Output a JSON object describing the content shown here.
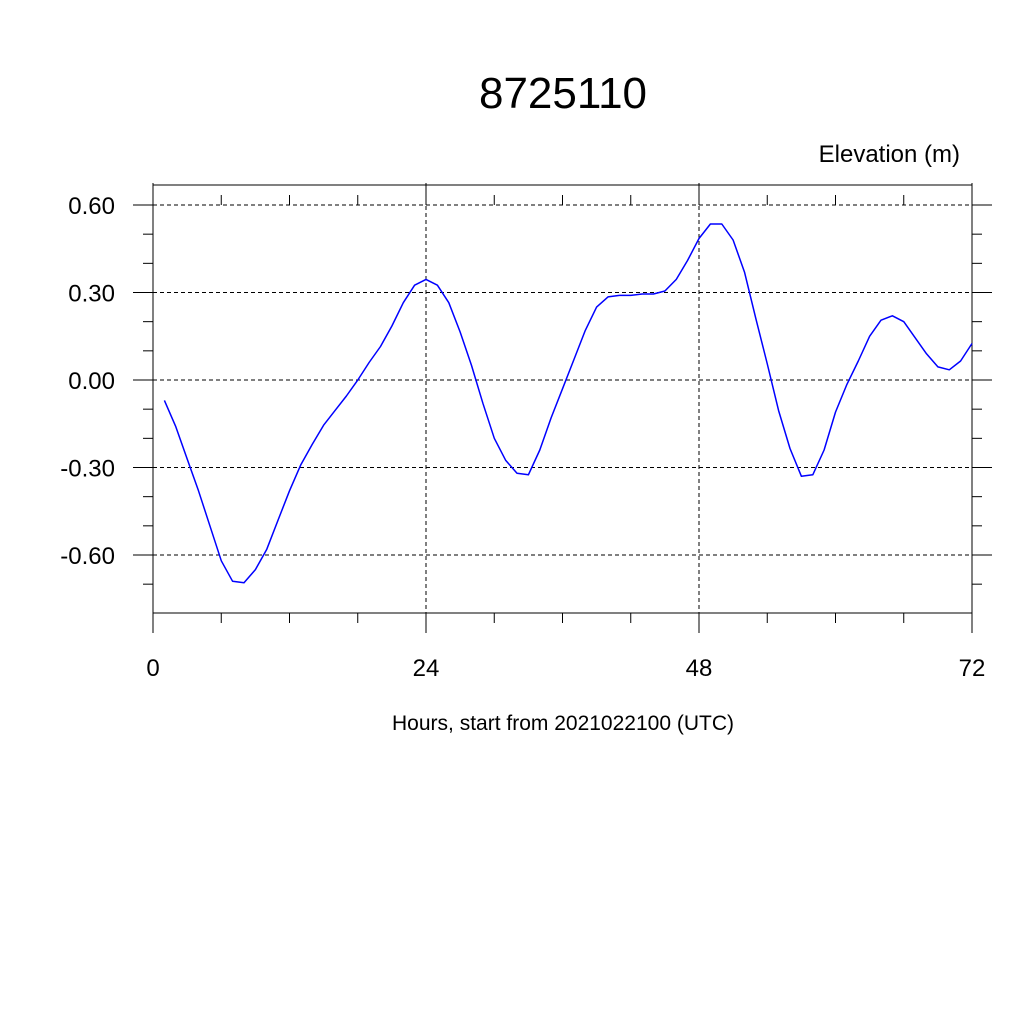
{
  "chart_data": {
    "type": "line",
    "title": "8725110",
    "units_label": "Elevation (m)",
    "xlabel": "Hours, start from 2021022100 (UTC)",
    "ylabel": "",
    "xlim": [
      0,
      72
    ],
    "ylim": [
      -0.8,
      0.67
    ],
    "x_ticks": [
      0,
      24,
      48,
      72
    ],
    "x_tick_labels": [
      "0",
      "24",
      "48",
      "72"
    ],
    "y_ticks": [
      0.6,
      0.3,
      0.0,
      -0.3,
      -0.6
    ],
    "y_tick_labels": [
      "0.60",
      "0.30",
      "0.00",
      "-0.30",
      "-0.60"
    ],
    "grid": true,
    "series": [
      {
        "color": "#0000ff",
        "x": [
          1,
          2,
          3,
          4,
          5,
          6,
          7,
          8,
          9,
          10,
          11,
          12,
          13,
          14,
          15,
          16,
          17,
          18,
          19,
          20,
          21,
          22,
          23,
          24,
          25,
          26,
          27,
          28,
          29,
          30,
          31,
          32,
          33,
          34,
          35,
          36,
          37,
          38,
          39,
          40,
          41,
          42,
          43,
          44,
          45,
          46,
          47,
          48,
          49,
          50,
          51,
          52,
          53,
          54,
          55,
          56,
          57,
          58,
          59,
          60,
          61,
          62,
          63,
          64,
          65,
          66,
          67,
          68,
          69,
          70,
          71,
          72
        ],
        "y": [
          -0.07,
          -0.16,
          -0.27,
          -0.38,
          -0.5,
          -0.62,
          -0.69,
          -0.695,
          -0.65,
          -0.58,
          -0.48,
          -0.38,
          -0.29,
          -0.22,
          -0.155,
          -0.105,
          -0.055,
          0.0,
          0.06,
          0.115,
          0.185,
          0.265,
          0.325,
          0.345,
          0.325,
          0.265,
          0.165,
          0.05,
          -0.08,
          -0.2,
          -0.275,
          -0.32,
          -0.325,
          -0.24,
          -0.13,
          -0.03,
          0.07,
          0.17,
          0.25,
          0.285,
          0.29,
          0.29,
          0.295,
          0.295,
          0.305,
          0.345,
          0.41,
          0.485,
          0.535,
          0.535,
          0.48,
          0.37,
          0.21,
          0.055,
          -0.105,
          -0.235,
          -0.33,
          -0.325,
          -0.24,
          -0.11,
          -0.015,
          0.065,
          0.15,
          0.205,
          0.22,
          0.2,
          0.145,
          0.09,
          0.045,
          0.035,
          0.065,
          0.125
        ]
      }
    ]
  }
}
